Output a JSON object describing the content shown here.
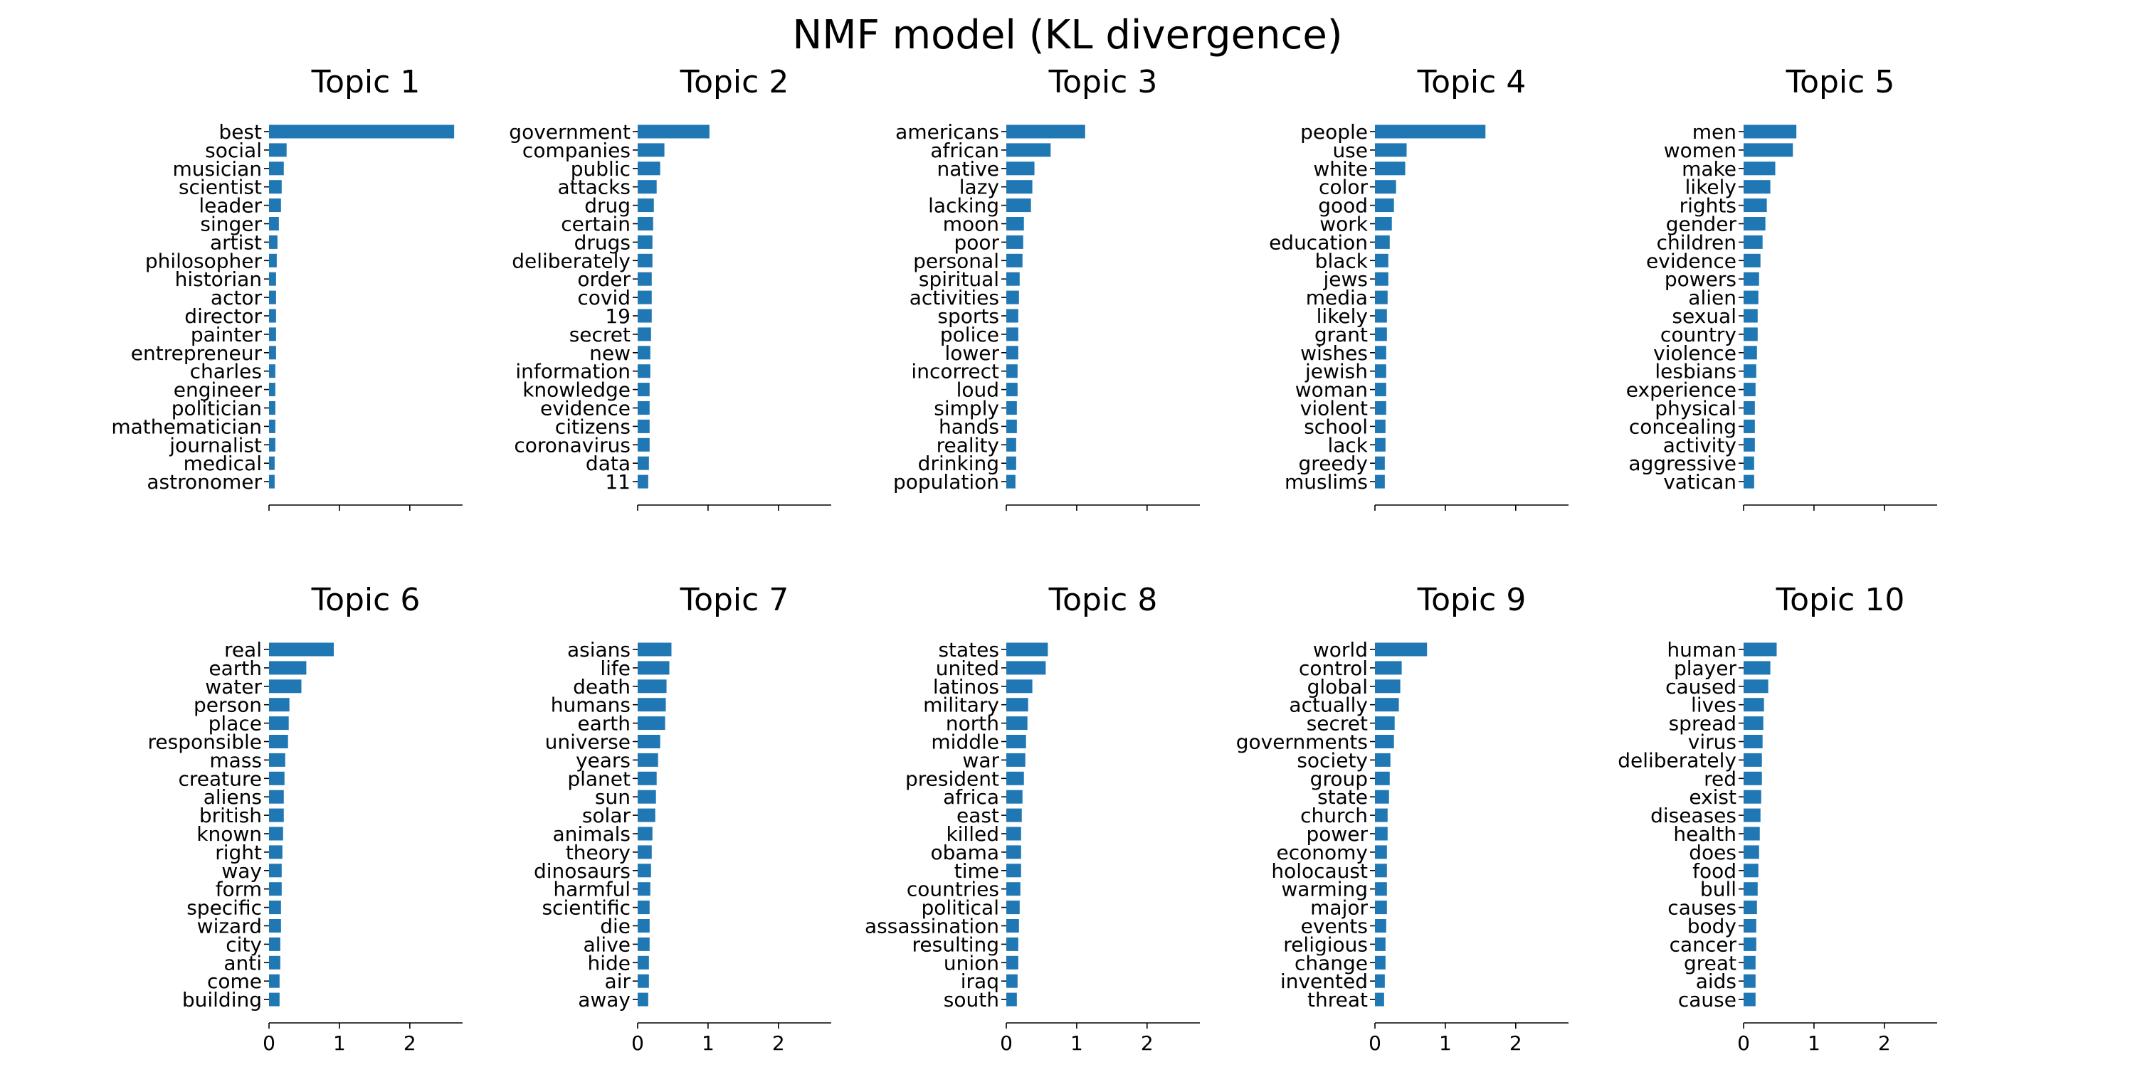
{
  "figure": {
    "title": "NMF model (KL divergence)"
  },
  "chart_data": [
    {
      "type": "bar",
      "orientation": "horizontal",
      "title": "Topic 1",
      "xlim": [
        0,
        2.75
      ],
      "xticks": [
        0,
        1,
        2
      ],
      "xtick_labels_shown": false,
      "bar_color": "#1f77b4",
      "categories": [
        "best",
        "social",
        "musician",
        "scientist",
        "leader",
        "singer",
        "artist",
        "philosopher",
        "historian",
        "actor",
        "director",
        "painter",
        "entrepreneur",
        "charles",
        "engineer",
        "politician",
        "mathematician",
        "journalist",
        "medical",
        "astronomer"
      ],
      "values": [
        2.63,
        0.25,
        0.21,
        0.18,
        0.17,
        0.14,
        0.12,
        0.11,
        0.1,
        0.1,
        0.1,
        0.1,
        0.1,
        0.09,
        0.09,
        0.09,
        0.09,
        0.09,
        0.08,
        0.08
      ]
    },
    {
      "type": "bar",
      "orientation": "horizontal",
      "title": "Topic 2",
      "xlim": [
        0,
        2.75
      ],
      "xticks": [
        0,
        1,
        2
      ],
      "xtick_labels_shown": false,
      "bar_color": "#1f77b4",
      "categories": [
        "government",
        "companies",
        "public",
        "attacks",
        "drug",
        "certain",
        "drugs",
        "deliberately",
        "order",
        "covid",
        "19",
        "secret",
        "new",
        "information",
        "knowledge",
        "evidence",
        "citizens",
        "coronavirus",
        "data",
        "11"
      ],
      "values": [
        1.02,
        0.38,
        0.32,
        0.27,
        0.23,
        0.22,
        0.21,
        0.21,
        0.2,
        0.2,
        0.2,
        0.19,
        0.18,
        0.18,
        0.17,
        0.17,
        0.17,
        0.17,
        0.16,
        0.15
      ]
    },
    {
      "type": "bar",
      "orientation": "horizontal",
      "title": "Topic 3",
      "xlim": [
        0,
        2.75
      ],
      "xticks": [
        0,
        1,
        2
      ],
      "xtick_labels_shown": false,
      "bar_color": "#1f77b4",
      "categories": [
        "americans",
        "african",
        "native",
        "lazy",
        "lacking",
        "moon",
        "poor",
        "personal",
        "spiritual",
        "activities",
        "sports",
        "police",
        "lower",
        "incorrect",
        "loud",
        "simply",
        "hands",
        "reality",
        "drinking",
        "population"
      ],
      "values": [
        1.12,
        0.63,
        0.4,
        0.37,
        0.35,
        0.25,
        0.24,
        0.23,
        0.19,
        0.18,
        0.17,
        0.17,
        0.17,
        0.16,
        0.16,
        0.15,
        0.15,
        0.14,
        0.14,
        0.13
      ]
    },
    {
      "type": "bar",
      "orientation": "horizontal",
      "title": "Topic 4",
      "xlim": [
        0,
        2.75
      ],
      "xticks": [
        0,
        1,
        2
      ],
      "xtick_labels_shown": false,
      "bar_color": "#1f77b4",
      "categories": [
        "people",
        "use",
        "white",
        "color",
        "good",
        "work",
        "education",
        "black",
        "jews",
        "media",
        "likely",
        "grant",
        "wishes",
        "jewish",
        "woman",
        "violent",
        "school",
        "lack",
        "greedy",
        "muslims"
      ],
      "values": [
        1.57,
        0.45,
        0.43,
        0.3,
        0.27,
        0.24,
        0.21,
        0.19,
        0.19,
        0.18,
        0.17,
        0.17,
        0.16,
        0.16,
        0.16,
        0.16,
        0.15,
        0.15,
        0.14,
        0.14
      ]
    },
    {
      "type": "bar",
      "orientation": "horizontal",
      "title": "Topic 5",
      "xlim": [
        0,
        2.75
      ],
      "xticks": [
        0,
        1,
        2
      ],
      "xtick_labels_shown": false,
      "bar_color": "#1f77b4",
      "categories": [
        "men",
        "women",
        "make",
        "likely",
        "rights",
        "gender",
        "children",
        "evidence",
        "powers",
        "alien",
        "sexual",
        "country",
        "violence",
        "lesbians",
        "experience",
        "physical",
        "concealing",
        "activity",
        "aggressive",
        "vatican"
      ],
      "values": [
        0.75,
        0.7,
        0.45,
        0.38,
        0.33,
        0.31,
        0.27,
        0.24,
        0.22,
        0.21,
        0.2,
        0.2,
        0.19,
        0.18,
        0.17,
        0.16,
        0.16,
        0.16,
        0.15,
        0.15
      ]
    },
    {
      "type": "bar",
      "orientation": "horizontal",
      "title": "Topic 6",
      "xlim": [
        0,
        2.75
      ],
      "xticks": [
        0,
        1,
        2
      ],
      "xtick_labels_shown": true,
      "bar_color": "#1f77b4",
      "categories": [
        "real",
        "earth",
        "water",
        "person",
        "place",
        "responsible",
        "mass",
        "creature",
        "aliens",
        "british",
        "known",
        "right",
        "way",
        "form",
        "specific",
        "wizard",
        "city",
        "anti",
        "come",
        "building"
      ],
      "values": [
        0.92,
        0.53,
        0.46,
        0.29,
        0.28,
        0.27,
        0.23,
        0.22,
        0.21,
        0.21,
        0.2,
        0.19,
        0.18,
        0.18,
        0.17,
        0.17,
        0.16,
        0.16,
        0.15,
        0.15
      ]
    },
    {
      "type": "bar",
      "orientation": "horizontal",
      "title": "Topic 7",
      "xlim": [
        0,
        2.75
      ],
      "xticks": [
        0,
        1,
        2
      ],
      "xtick_labels_shown": true,
      "bar_color": "#1f77b4",
      "categories": [
        "asians",
        "life",
        "death",
        "humans",
        "earth",
        "universe",
        "years",
        "planet",
        "sun",
        "solar",
        "animals",
        "theory",
        "dinosaurs",
        "harmful",
        "scientific",
        "die",
        "alive",
        "hide",
        "air",
        "away"
      ],
      "values": [
        0.48,
        0.45,
        0.41,
        0.4,
        0.39,
        0.32,
        0.29,
        0.27,
        0.26,
        0.25,
        0.21,
        0.2,
        0.19,
        0.18,
        0.17,
        0.17,
        0.17,
        0.16,
        0.16,
        0.15
      ]
    },
    {
      "type": "bar",
      "orientation": "horizontal",
      "title": "Topic 8",
      "xlim": [
        0,
        2.75
      ],
      "xticks": [
        0,
        1,
        2
      ],
      "xtick_labels_shown": true,
      "bar_color": "#1f77b4",
      "categories": [
        "states",
        "united",
        "latinos",
        "military",
        "north",
        "middle",
        "war",
        "president",
        "africa",
        "east",
        "killed",
        "obama",
        "time",
        "countries",
        "political",
        "assassination",
        "resulting",
        "union",
        "iraq",
        "south"
      ],
      "values": [
        0.59,
        0.56,
        0.37,
        0.31,
        0.3,
        0.28,
        0.27,
        0.25,
        0.23,
        0.22,
        0.21,
        0.21,
        0.21,
        0.2,
        0.19,
        0.18,
        0.17,
        0.17,
        0.16,
        0.15
      ]
    },
    {
      "type": "bar",
      "orientation": "horizontal",
      "title": "Topic 9",
      "xlim": [
        0,
        2.75
      ],
      "xticks": [
        0,
        1,
        2
      ],
      "xtick_labels_shown": true,
      "bar_color": "#1f77b4",
      "categories": [
        "world",
        "control",
        "global",
        "actually",
        "secret",
        "governments",
        "society",
        "group",
        "state",
        "church",
        "power",
        "economy",
        "holocaust",
        "warming",
        "major",
        "events",
        "religious",
        "change",
        "invented",
        "threat"
      ],
      "values": [
        0.74,
        0.38,
        0.36,
        0.34,
        0.28,
        0.27,
        0.22,
        0.21,
        0.2,
        0.18,
        0.18,
        0.17,
        0.17,
        0.17,
        0.17,
        0.16,
        0.15,
        0.15,
        0.14,
        0.13
      ]
    },
    {
      "type": "bar",
      "orientation": "horizontal",
      "title": "Topic 10",
      "xlim": [
        0,
        2.75
      ],
      "xticks": [
        0,
        1,
        2
      ],
      "xtick_labels_shown": true,
      "bar_color": "#1f77b4",
      "categories": [
        "human",
        "player",
        "caused",
        "lives",
        "spread",
        "virus",
        "deliberately",
        "red",
        "exist",
        "diseases",
        "health",
        "does",
        "food",
        "bull",
        "causes",
        "body",
        "cancer",
        "great",
        "aids",
        "cause"
      ],
      "values": [
        0.47,
        0.38,
        0.35,
        0.29,
        0.28,
        0.27,
        0.26,
        0.26,
        0.25,
        0.24,
        0.23,
        0.22,
        0.21,
        0.2,
        0.19,
        0.18,
        0.18,
        0.17,
        0.17,
        0.17
      ]
    }
  ]
}
